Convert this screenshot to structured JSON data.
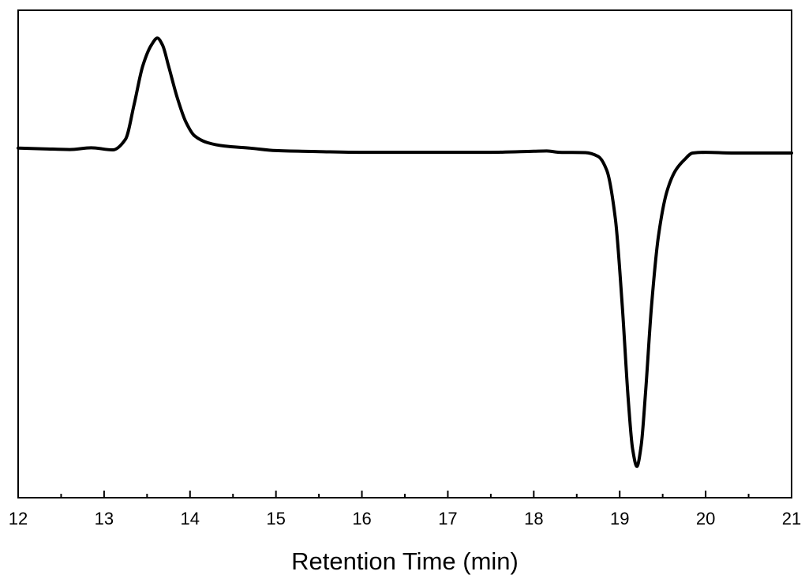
{
  "chart_data": {
    "type": "line",
    "title": "",
    "xlabel": "Retention Time (min)",
    "ylabel": "",
    "xlim": [
      12,
      21
    ],
    "ylim": [
      -1.0,
      0.4
    ],
    "x_ticks": [
      "12",
      "13",
      "14",
      "15",
      "16",
      "17",
      "18",
      "19",
      "20",
      "21"
    ],
    "y_ticks_shown": false,
    "grid": false,
    "legend": "none",
    "line_color": "#000000",
    "series": [
      {
        "x": [
          12.0,
          12.3,
          12.6,
          12.85,
          13.1,
          13.25,
          13.35,
          13.45,
          13.55,
          13.62,
          13.68,
          13.75,
          13.85,
          13.95,
          14.05,
          14.2,
          14.4,
          14.7,
          15.0,
          15.5,
          16.0,
          16.5,
          17.0,
          17.5,
          18.0,
          18.15,
          18.3,
          18.6,
          18.75,
          18.85,
          18.95,
          19.03,
          19.1,
          19.15,
          19.2,
          19.25,
          19.3,
          19.37,
          19.45,
          19.55,
          19.65,
          19.75,
          19.85,
          20.0,
          20.3,
          20.7,
          21.0
        ],
        "y": [
          0.004,
          0.002,
          0.0,
          0.005,
          -0.001,
          0.03,
          0.13,
          0.24,
          0.3,
          0.32,
          0.3,
          0.24,
          0.15,
          0.08,
          0.04,
          0.02,
          0.01,
          0.004,
          -0.003,
          -0.006,
          -0.008,
          -0.008,
          -0.008,
          -0.008,
          -0.005,
          -0.004,
          -0.008,
          -0.009,
          -0.02,
          -0.06,
          -0.2,
          -0.45,
          -0.72,
          -0.86,
          -0.91,
          -0.85,
          -0.7,
          -0.45,
          -0.25,
          -0.12,
          -0.06,
          -0.03,
          -0.01,
          -0.008,
          -0.01,
          -0.01,
          -0.01
        ]
      }
    ]
  }
}
